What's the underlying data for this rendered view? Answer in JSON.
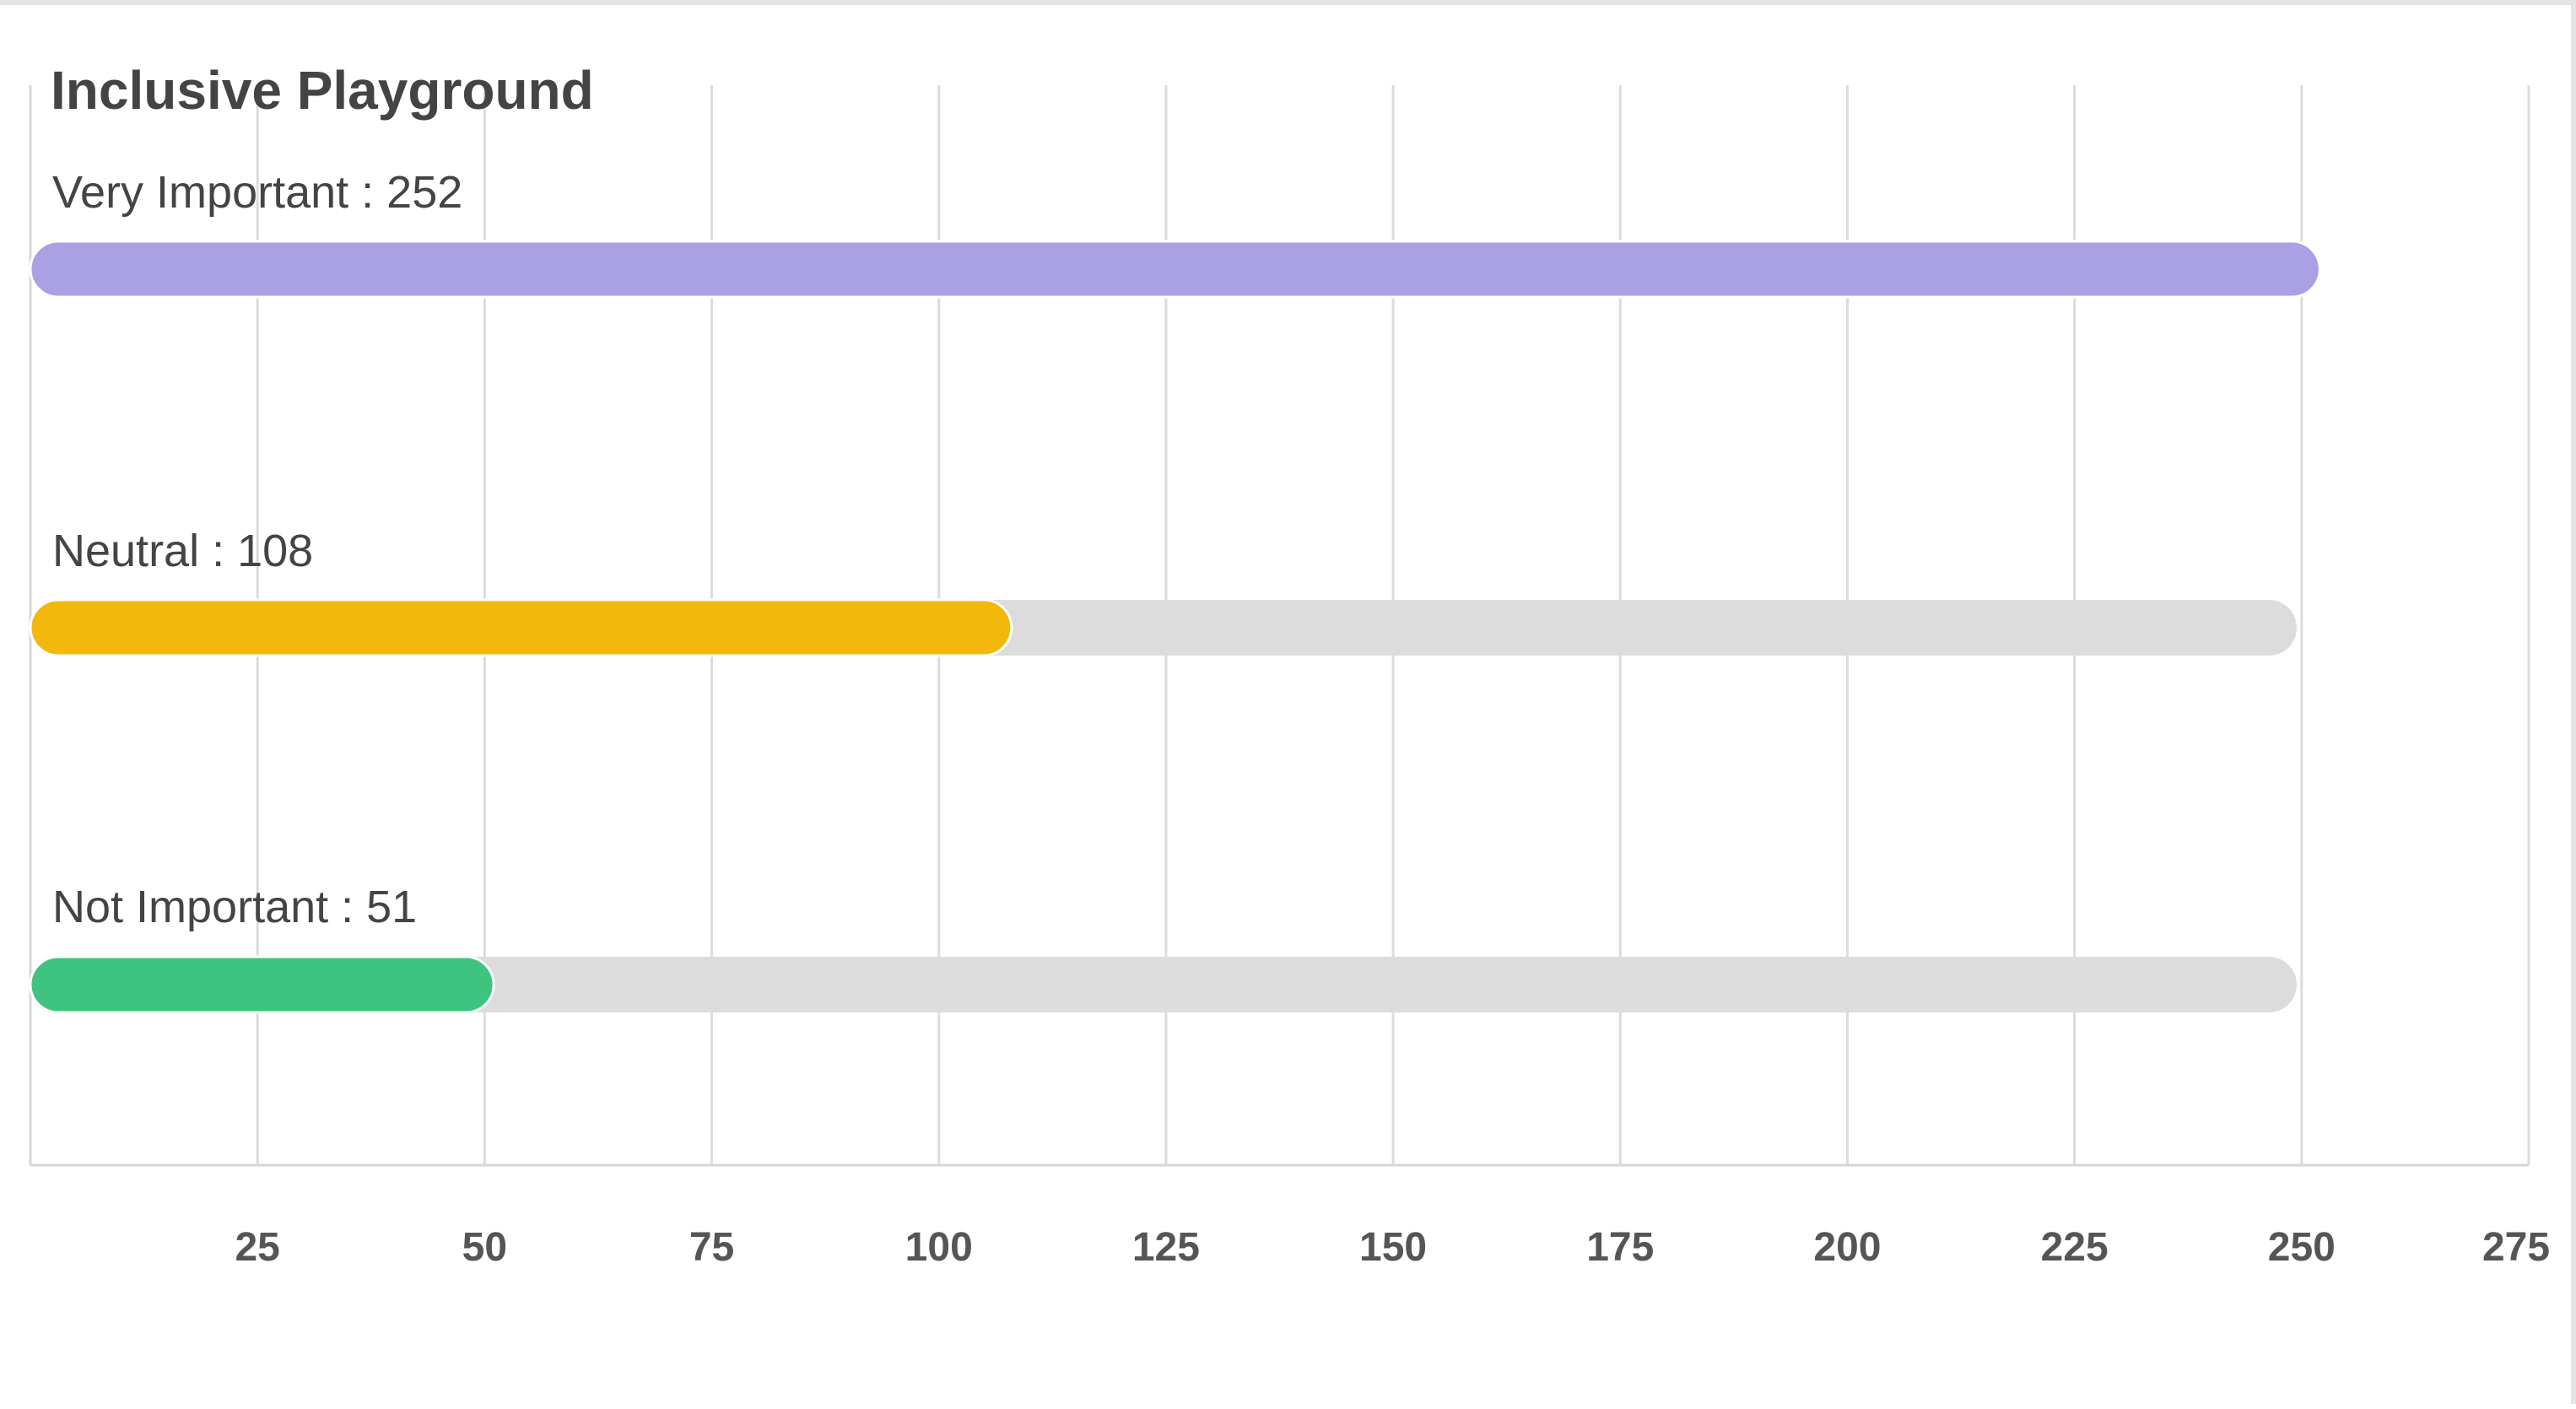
{
  "chart_data": {
    "type": "bar",
    "orientation": "horizontal",
    "title": "Inclusive Playground",
    "categories": [
      "Very Important",
      "Neutral",
      "Not Important"
    ],
    "values": [
      252,
      108,
      51
    ],
    "label_separator": " : ",
    "xlim": [
      0,
      275
    ],
    "x_ticks": [
      25,
      50,
      75,
      100,
      125,
      150,
      175,
      200,
      225,
      250,
      275
    ],
    "grid": true,
    "xlabel": "",
    "ylabel": "",
    "colors": {
      "bars": [
        "#aaa0e4",
        "#f2b90c",
        "#3ec47f"
      ],
      "track": "#dcdcdc",
      "grid": "#dcdcdc",
      "text": "#444444"
    }
  }
}
